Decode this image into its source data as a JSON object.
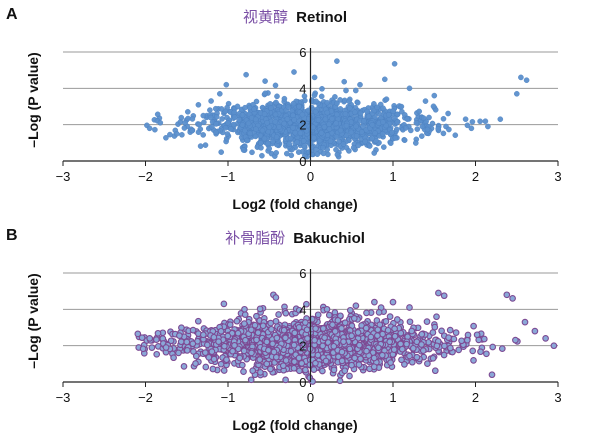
{
  "chart_data": [
    {
      "type": "scatter",
      "panel_letter": "A",
      "title_cn": "视黄醇",
      "title": "Retinol",
      "xlabel": "Log2 (fold change)",
      "ylabel": "–Log (P value)",
      "xlim": [
        -3,
        3
      ],
      "ylim": [
        0,
        6
      ],
      "xticks": [
        "−3",
        "−2",
        "−1",
        "0",
        "1",
        "2",
        "3"
      ],
      "yticks": [
        "0",
        "2",
        "4",
        "6"
      ],
      "grid": "horizontal",
      "colors": {
        "point": "#5b8fcc",
        "point_stroke": "#4a7fbf"
      },
      "cloud": {
        "n": 1500,
        "seed": 11,
        "x_sd": 0.65,
        "y_base": 2.0,
        "y_sd": 0.75
      },
      "series": [
        {
          "name": "",
          "points": [
            [
              2.55,
              4.6
            ],
            [
              2.62,
              4.45
            ],
            [
              2.5,
              3.7
            ],
            [
              1.02,
              5.35
            ],
            [
              0.32,
              5.5
            ],
            [
              0.05,
              4.6
            ],
            [
              -0.78,
              4.75
            ],
            [
              -1.02,
              4.2
            ],
            [
              -1.82,
              2.1
            ],
            [
              -1.62,
              1.5
            ],
            [
              -1.52,
              2.1
            ],
            [
              -1.95,
              1.8
            ],
            [
              2.3,
              2.3
            ],
            [
              2.15,
              1.9
            ],
            [
              1.95,
              1.8
            ],
            [
              1.88,
              2.3
            ],
            [
              -1.3,
              2.5
            ],
            [
              -0.55,
              4.4
            ],
            [
              0.6,
              4.2
            ],
            [
              1.5,
              3.6
            ],
            [
              -0.2,
              4.9
            ],
            [
              -1.1,
              3.7
            ],
            [
              1.2,
              4.0
            ],
            [
              0.9,
              4.5
            ]
          ]
        }
      ]
    },
    {
      "type": "scatter",
      "panel_letter": "B",
      "title_cn": "补骨脂酚",
      "title": "Bakuchiol",
      "xlabel": "Log2 (fold change)",
      "ylabel": "–Log (P value)",
      "xlim": [
        -3,
        3
      ],
      "ylim": [
        0,
        6
      ],
      "xticks": [
        "−3",
        "−2",
        "−1",
        "0",
        "1",
        "2",
        "3"
      ],
      "yticks": [
        "0",
        "2",
        "4",
        "6"
      ],
      "grid": "horizontal",
      "colors": {
        "point": "#7d4a93",
        "point_stroke": "#5a2f72",
        "inner": "#8aa8d8"
      },
      "cloud": {
        "n": 1700,
        "seed": 23,
        "x_sd": 0.8,
        "y_base": 2.1,
        "y_sd": 0.8
      },
      "series": [
        {
          "name": "",
          "points": [
            [
              1.55,
              4.9
            ],
            [
              1.62,
              4.75
            ],
            [
              2.38,
              4.8
            ],
            [
              2.45,
              4.6
            ],
            [
              -0.45,
              4.8
            ],
            [
              -0.42,
              4.65
            ],
            [
              -1.05,
              4.3
            ],
            [
              0.55,
              4.2
            ],
            [
              2.95,
              2.0
            ],
            [
              2.72,
              2.8
            ],
            [
              -1.75,
              1.9
            ],
            [
              -1.6,
              1.6
            ],
            [
              2.2,
              0.4
            ],
            [
              2.02,
              2.6
            ],
            [
              1.9,
              2.3
            ],
            [
              1.2,
              4.1
            ],
            [
              -0.8,
              4.0
            ],
            [
              2.6,
              3.3
            ],
            [
              2.85,
              2.4
            ],
            [
              -1.3,
              2.6
            ],
            [
              1.0,
              4.4
            ],
            [
              0.2,
              4.0
            ]
          ]
        }
      ]
    }
  ]
}
